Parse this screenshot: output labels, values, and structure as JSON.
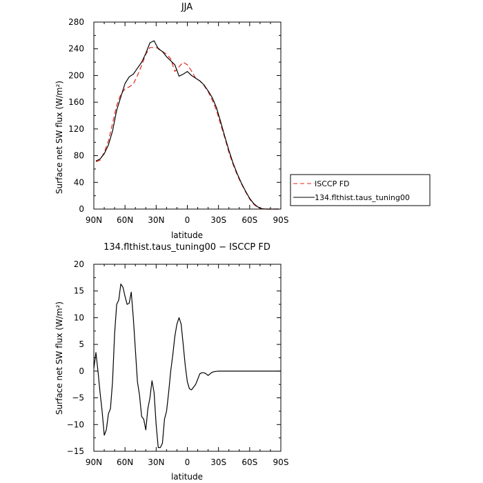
{
  "chart_data": [
    {
      "type": "line",
      "title": "JJA",
      "xlabel": "latitude",
      "ylabel": "Surface net SW flux (W/m²)",
      "xlim": [
        90,
        -90
      ],
      "ylim": [
        0,
        280
      ],
      "xticks": [
        {
          "value": 90,
          "label": "90N"
        },
        {
          "value": 60,
          "label": "60N"
        },
        {
          "value": 30,
          "label": "30N"
        },
        {
          "value": 0,
          "label": "0"
        },
        {
          "value": -30,
          "label": "30S"
        },
        {
          "value": -60,
          "label": "60S"
        },
        {
          "value": -90,
          "label": "90S"
        }
      ],
      "yticks": [
        0,
        40,
        80,
        120,
        160,
        200,
        240,
        280
      ],
      "legend": {
        "placement": "right-outside"
      },
      "series": [
        {
          "name": "ISCCP FD",
          "color": "#e8231c",
          "dash": "dashed",
          "x": [
            88,
            84,
            80,
            76,
            72,
            68,
            64,
            60,
            56,
            52,
            48,
            44,
            40,
            36,
            32,
            28,
            24,
            20,
            16,
            12,
            8,
            4,
            0,
            -4,
            -8,
            -12,
            -16,
            -20,
            -24,
            -28,
            -32,
            -36,
            -40,
            -44,
            -48,
            -52,
            -56,
            -60,
            -64,
            -68,
            -72,
            -76,
            -80,
            -84,
            -88
          ],
          "y": [
            71,
            73,
            85,
            102,
            128,
            155,
            172,
            180,
            183,
            187,
            200,
            215,
            232,
            242,
            242,
            241,
            236,
            232,
            225,
            206,
            213,
            220,
            216,
            207,
            196,
            192,
            185,
            176,
            163,
            148,
            127,
            107,
            85,
            67,
            51,
            38,
            26,
            15,
            7,
            2,
            0.5,
            0,
            0,
            0,
            0
          ]
        },
        {
          "name": "134.flthist.taus_tuning00",
          "color": "#000000",
          "dash": "solid",
          "x": [
            88,
            84,
            80,
            76,
            72,
            68,
            64,
            60,
            56,
            52,
            48,
            44,
            40,
            36,
            32,
            28,
            24,
            20,
            16,
            12,
            8,
            4,
            0,
            -4,
            -8,
            -12,
            -16,
            -20,
            -24,
            -28,
            -32,
            -36,
            -40,
            -44,
            -48,
            -52,
            -56,
            -60,
            -64,
            -68,
            -72,
            -76,
            -80,
            -84,
            -88
          ],
          "y": [
            72,
            75,
            83,
            96,
            117,
            148,
            168,
            188,
            198,
            202,
            211,
            220,
            233,
            249,
            252,
            240,
            236,
            228,
            222,
            216,
            199,
            202,
            206,
            200,
            196,
            192,
            186,
            177,
            167,
            152,
            131,
            109,
            88,
            69,
            53,
            39,
            27,
            16,
            8,
            3,
            0.5,
            0,
            0,
            0,
            0
          ]
        }
      ]
    },
    {
      "type": "line",
      "title": "134.flthist.taus_tuning00 − ISCCP FD",
      "xlabel": "latitude",
      "ylabel": "Surface net SW flux (W/m²)",
      "xlim": [
        90,
        -90
      ],
      "ylim": [
        -15,
        20
      ],
      "xticks": [
        {
          "value": 90,
          "label": "90N"
        },
        {
          "value": 60,
          "label": "60N"
        },
        {
          "value": 30,
          "label": "30N"
        },
        {
          "value": 0,
          "label": "0"
        },
        {
          "value": -30,
          "label": "30S"
        },
        {
          "value": -60,
          "label": "60S"
        },
        {
          "value": -90,
          "label": "90S"
        }
      ],
      "yticks": [
        -15,
        -10,
        -5,
        0,
        5,
        10,
        15,
        20
      ],
      "series": [
        {
          "color": "#000000",
          "dash": "solid",
          "x": [
            90,
            88,
            86,
            84,
            82,
            80,
            78,
            76,
            74,
            72,
            70,
            68,
            66,
            64,
            62,
            60,
            58,
            56,
            54,
            52,
            50,
            48,
            46,
            44,
            42,
            40,
            38,
            36,
            34,
            32,
            30,
            28,
            26,
            24,
            22,
            20,
            18,
            16,
            14,
            12,
            10,
            8,
            6,
            4,
            2,
            0,
            -2,
            -4,
            -6,
            -8,
            -10,
            -12,
            -14,
            -16,
            -18,
            -20,
            -22,
            -24,
            -26,
            -28,
            -30,
            -32,
            -34,
            -36,
            -38,
            -40,
            -42,
            -44,
            -46,
            -48,
            -50,
            -52,
            -54,
            -56,
            -58,
            -60,
            -62,
            -64,
            -66,
            -68,
            -70,
            -72,
            -74,
            -76,
            -78,
            -80,
            -82,
            -84,
            -86,
            -88,
            -90
          ],
          "y": [
            0.5,
            3.5,
            0,
            -4,
            -7.5,
            -12,
            -11,
            -8,
            -7,
            -2,
            7,
            12.5,
            13.3,
            16.3,
            15.7,
            14,
            12.5,
            12.7,
            14.8,
            10,
            4,
            -2,
            -4.5,
            -8.5,
            -9,
            -11,
            -7,
            -5,
            -1.8,
            -4,
            -10,
            -14.3,
            -14.3,
            -13.5,
            -9,
            -7.5,
            -4,
            0,
            3,
            6.5,
            8.8,
            10,
            8.8,
            5,
            1,
            -2,
            -3.3,
            -3.5,
            -3,
            -2.5,
            -1.5,
            -0.5,
            -0.3,
            -0.3,
            -0.5,
            -0.8,
            -0.5,
            -0.2,
            -0.1,
            -0.05,
            0,
            0,
            0,
            0,
            0,
            0,
            0,
            0,
            0,
            0,
            0,
            0,
            0,
            0,
            0,
            0,
            0,
            0,
            0,
            0,
            0,
            0,
            0,
            0,
            0,
            0,
            0,
            0,
            0,
            0,
            0
          ]
        }
      ]
    }
  ]
}
